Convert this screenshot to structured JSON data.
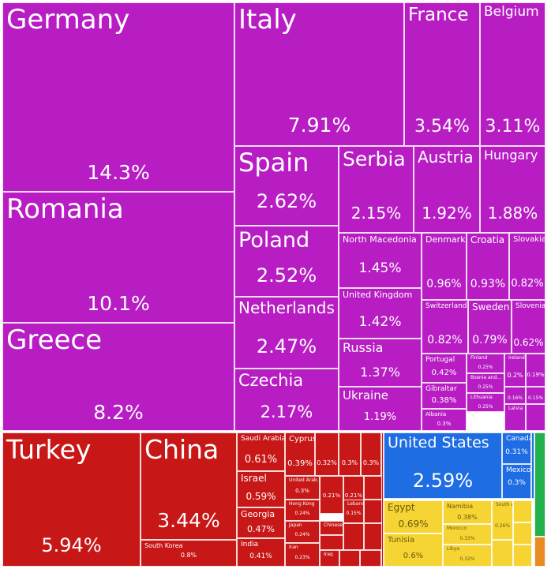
{
  "chart_data": {
    "type": "treemap",
    "colors": {
      "Europe": "#b81dc4",
      "Asia": "#c81717",
      "North America": "#1e6de3",
      "Africa": "#f6d433",
      "Oceania": "#e88b22",
      "South America": "#22b14c"
    },
    "items": [
      {
        "name": "Germany",
        "value": "14.3%",
        "group": "Europe"
      },
      {
        "name": "Italy",
        "value": "7.91%",
        "group": "Europe"
      },
      {
        "name": "France",
        "value": "3.54%",
        "group": "Europe"
      },
      {
        "name": "Belgium",
        "value": "3.11%",
        "group": "Europe"
      },
      {
        "name": "Romania",
        "value": "10.1%",
        "group": "Europe"
      },
      {
        "name": "Greece",
        "value": "8.2%",
        "group": "Europe"
      },
      {
        "name": "Spain",
        "value": "2.62%",
        "group": "Europe"
      },
      {
        "name": "Poland",
        "value": "2.52%",
        "group": "Europe"
      },
      {
        "name": "Netherlands",
        "value": "2.47%",
        "group": "Europe"
      },
      {
        "name": "Czechia",
        "value": "2.17%",
        "group": "Europe"
      },
      {
        "name": "Serbia",
        "value": "2.15%",
        "group": "Europe"
      },
      {
        "name": "Austria",
        "value": "1.92%",
        "group": "Europe"
      },
      {
        "name": "Hungary",
        "value": "1.88%",
        "group": "Europe"
      },
      {
        "name": "North Macedonia",
        "value": "1.45%",
        "group": "Europe"
      },
      {
        "name": "United Kingdom",
        "value": "1.42%",
        "group": "Europe"
      },
      {
        "name": "Russia",
        "value": "1.37%",
        "group": "Europe"
      },
      {
        "name": "Ukraine",
        "value": "1.19%",
        "group": "Europe"
      },
      {
        "name": "Denmark",
        "value": "0.96%",
        "group": "Europe"
      },
      {
        "name": "Croatia",
        "value": "0.93%",
        "group": "Europe"
      },
      {
        "name": "Slovakia",
        "value": "0.82%",
        "group": "Europe"
      },
      {
        "name": "Switzerland",
        "value": "0.82%",
        "group": "Europe"
      },
      {
        "name": "Sweden",
        "value": "0.79%",
        "group": "Europe"
      },
      {
        "name": "Slovenia",
        "value": "0.62%",
        "group": "Europe"
      },
      {
        "name": "Portugal",
        "value": "0.42%",
        "group": "Europe"
      },
      {
        "name": "Gibraltar",
        "value": "0.38%",
        "group": "Europe"
      },
      {
        "name": "Albania",
        "value": "0.3%",
        "group": "Europe"
      },
      {
        "name": "Finland",
        "value": "0.25%",
        "group": "Europe"
      },
      {
        "name": "Bosnia and...",
        "value": "0.25%",
        "group": "Europe"
      },
      {
        "name": "Lithuania",
        "value": "0.25%",
        "group": "Europe"
      },
      {
        "name": "Ireland",
        "value": "0.2%",
        "group": "Europe"
      },
      {
        "name": "",
        "value": "0.19%",
        "group": "Europe"
      },
      {
        "name": "",
        "value": "0.16%",
        "group": "Europe"
      },
      {
        "name": "",
        "value": "0.15%",
        "group": "Europe"
      },
      {
        "name": "Latvia",
        "value": "",
        "group": "Europe"
      },
      {
        "name": "Turkey",
        "value": "5.94%",
        "group": "Asia"
      },
      {
        "name": "China",
        "value": "3.44%",
        "group": "Asia"
      },
      {
        "name": "South Korea",
        "value": "0.8%",
        "group": "Asia"
      },
      {
        "name": "Saudi Arabia",
        "value": "0.61%",
        "group": "Asia"
      },
      {
        "name": "Israel",
        "value": "0.59%",
        "group": "Asia"
      },
      {
        "name": "Georgia",
        "value": "0.47%",
        "group": "Asia"
      },
      {
        "name": "India",
        "value": "0.41%",
        "group": "Asia"
      },
      {
        "name": "Cyprus",
        "value": "0.39%",
        "group": "Asia"
      },
      {
        "name": "",
        "value": "0.32%",
        "group": "Asia"
      },
      {
        "name": "",
        "value": "0.3%",
        "group": "Asia"
      },
      {
        "name": "",
        "value": "0.3%",
        "group": "Asia"
      },
      {
        "name": "United Arab...",
        "value": "0.3%",
        "group": "Asia"
      },
      {
        "name": "",
        "value": "0.21%",
        "group": "Asia"
      },
      {
        "name": "",
        "value": "0.21%",
        "group": "Asia"
      },
      {
        "name": "Hong Kong",
        "value": "0.24%",
        "group": "Asia"
      },
      {
        "name": "Lebanon",
        "value": "0.15%",
        "group": "Asia"
      },
      {
        "name": "Japan",
        "value": "0.24%",
        "group": "Asia"
      },
      {
        "name": "Chinese...",
        "value": "",
        "group": "Asia"
      },
      {
        "name": "Iran",
        "value": "0.23%",
        "group": "Asia"
      },
      {
        "name": "Iraq",
        "value": "",
        "group": "Asia"
      },
      {
        "name": "United States",
        "value": "2.59%",
        "group": "North America"
      },
      {
        "name": "Canada",
        "value": "0.31%",
        "group": "North America"
      },
      {
        "name": "Mexico",
        "value": "0.3%",
        "group": "North America"
      },
      {
        "name": "Egypt",
        "value": "0.69%",
        "group": "Africa"
      },
      {
        "name": "Tunisia",
        "value": "0.6%",
        "group": "Africa"
      },
      {
        "name": "Namibia",
        "value": "0.38%",
        "group": "Africa"
      },
      {
        "name": "Morocco",
        "value": "0.33%",
        "group": "Africa"
      },
      {
        "name": "Libya",
        "value": "0.32%",
        "group": "Africa"
      },
      {
        "name": "South Africa",
        "value": "0.26%",
        "group": "Africa"
      }
    ]
  }
}
